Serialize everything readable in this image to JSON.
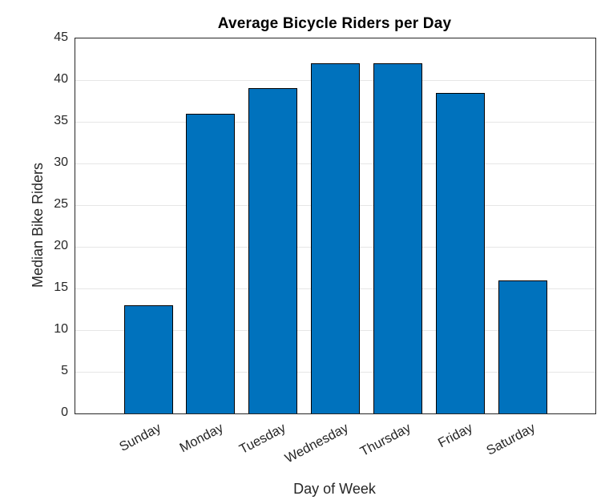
{
  "chart_data": {
    "type": "bar",
    "title": "Average Bicycle Riders per Day",
    "xlabel": "Day of Week",
    "ylabel": "Median Bike Riders",
    "categories": [
      "Sunday",
      "Monday",
      "Tuesday",
      "Wednesday",
      "Thursday",
      "Friday",
      "Saturday"
    ],
    "values": [
      13,
      36,
      39,
      42,
      42,
      38.5,
      16
    ],
    "ylim": [
      0,
      45
    ],
    "yticks": [
      0,
      5,
      10,
      15,
      20,
      25,
      30,
      35,
      40,
      45
    ],
    "grid": "horizontal-only",
    "legend": "none",
    "bar_color": "#0072BD",
    "bar_edge_color": "#000000",
    "axis_box_color": "#262626",
    "grid_color": "#e6e6e6",
    "text_color": "#262626",
    "xtick_rotation_deg": 28
  }
}
